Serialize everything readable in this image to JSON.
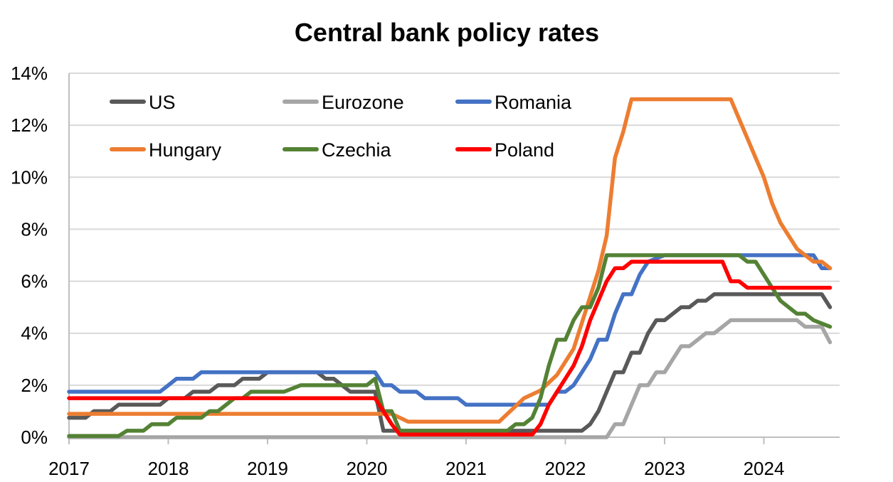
{
  "chart_data": {
    "type": "line",
    "title": "Central bank policy rates",
    "xlabel": "",
    "ylabel": "",
    "x_ticks": [
      "2017",
      "2018",
      "2019",
      "2020",
      "2021",
      "2022",
      "2023",
      "2024"
    ],
    "y_ticks": [
      "0%",
      "2%",
      "4%",
      "6%",
      "8%",
      "10%",
      "12%",
      "14%"
    ],
    "xlim": [
      "2017-01",
      "2024-09"
    ],
    "ylim": [
      0,
      14
    ],
    "grid": true,
    "legend_position": "top-left, inside plot, 3 columns",
    "series": [
      {
        "name": "US",
        "color": "#595959",
        "points": [
          [
            "2017-01",
            0.75
          ],
          [
            "2017-03",
            0.75
          ],
          [
            "2017-04",
            1.0
          ],
          [
            "2017-06",
            1.0
          ],
          [
            "2017-07",
            1.25
          ],
          [
            "2017-12",
            1.25
          ],
          [
            "2018-01",
            1.5
          ],
          [
            "2018-03",
            1.5
          ],
          [
            "2018-04",
            1.75
          ],
          [
            "2018-06",
            1.75
          ],
          [
            "2018-07",
            2.0
          ],
          [
            "2018-09",
            2.0
          ],
          [
            "2018-10",
            2.25
          ],
          [
            "2018-12",
            2.25
          ],
          [
            "2019-01",
            2.5
          ],
          [
            "2019-07",
            2.5
          ],
          [
            "2019-08",
            2.25
          ],
          [
            "2019-09",
            2.25
          ],
          [
            "2019-10",
            2.0
          ],
          [
            "2019-11",
            1.75
          ],
          [
            "2020-02",
            1.75
          ],
          [
            "2020-03",
            0.25
          ],
          [
            "2022-03",
            0.25
          ],
          [
            "2022-04",
            0.5
          ],
          [
            "2022-05",
            1.0
          ],
          [
            "2022-06",
            1.75
          ],
          [
            "2022-07",
            2.5
          ],
          [
            "2022-08",
            2.5
          ],
          [
            "2022-09",
            3.25
          ],
          [
            "2022-10",
            3.25
          ],
          [
            "2022-11",
            4.0
          ],
          [
            "2022-12",
            4.5
          ],
          [
            "2023-01",
            4.5
          ],
          [
            "2023-02",
            4.75
          ],
          [
            "2023-03",
            5.0
          ],
          [
            "2023-04",
            5.0
          ],
          [
            "2023-05",
            5.25
          ],
          [
            "2023-06",
            5.25
          ],
          [
            "2023-07",
            5.5
          ],
          [
            "2024-08",
            5.5
          ],
          [
            "2024-09",
            5.0
          ]
        ]
      },
      {
        "name": "Eurozone",
        "color": "#a6a6a6",
        "points": [
          [
            "2017-01",
            0.0
          ],
          [
            "2022-06",
            0.0
          ],
          [
            "2022-07",
            0.5
          ],
          [
            "2022-08",
            0.5
          ],
          [
            "2022-09",
            1.25
          ],
          [
            "2022-10",
            2.0
          ],
          [
            "2022-11",
            2.0
          ],
          [
            "2022-12",
            2.5
          ],
          [
            "2023-01",
            2.5
          ],
          [
            "2023-02",
            3.0
          ],
          [
            "2023-03",
            3.5
          ],
          [
            "2023-04",
            3.5
          ],
          [
            "2023-05",
            3.75
          ],
          [
            "2023-06",
            4.0
          ],
          [
            "2023-07",
            4.0
          ],
          [
            "2023-08",
            4.25
          ],
          [
            "2023-09",
            4.5
          ],
          [
            "2024-05",
            4.5
          ],
          [
            "2024-06",
            4.25
          ],
          [
            "2024-08",
            4.25
          ],
          [
            "2024-09",
            3.65
          ]
        ]
      },
      {
        "name": "Romania",
        "color": "#4472c4",
        "points": [
          [
            "2017-01",
            1.75
          ],
          [
            "2017-12",
            1.75
          ],
          [
            "2018-01",
            2.0
          ],
          [
            "2018-02",
            2.25
          ],
          [
            "2018-04",
            2.25
          ],
          [
            "2018-05",
            2.5
          ],
          [
            "2020-02",
            2.5
          ],
          [
            "2020-03",
            2.0
          ],
          [
            "2020-04",
            2.0
          ],
          [
            "2020-05",
            1.75
          ],
          [
            "2020-07",
            1.75
          ],
          [
            "2020-08",
            1.5
          ],
          [
            "2020-12",
            1.5
          ],
          [
            "2021-01",
            1.25
          ],
          [
            "2021-11",
            1.25
          ],
          [
            "2021-12",
            1.75
          ],
          [
            "2022-01",
            1.75
          ],
          [
            "2022-02",
            2.0
          ],
          [
            "2022-03",
            2.5
          ],
          [
            "2022-04",
            3.0
          ],
          [
            "2022-05",
            3.75
          ],
          [
            "2022-06",
            3.75
          ],
          [
            "2022-07",
            4.75
          ],
          [
            "2022-08",
            5.5
          ],
          [
            "2022-09",
            5.5
          ],
          [
            "2022-10",
            6.25
          ],
          [
            "2022-11",
            6.75
          ],
          [
            "2023-01",
            7.0
          ],
          [
            "2024-07",
            7.0
          ],
          [
            "2024-08",
            6.5
          ],
          [
            "2024-09",
            6.5
          ]
        ]
      },
      {
        "name": "Hungary",
        "color": "#ed7d31",
        "points": [
          [
            "2017-01",
            0.9
          ],
          [
            "2020-02",
            0.9
          ],
          [
            "2020-03",
            0.9
          ],
          [
            "2020-04",
            0.9
          ],
          [
            "2020-05",
            0.75
          ],
          [
            "2020-06",
            0.6
          ],
          [
            "2021-05",
            0.6
          ],
          [
            "2021-06",
            0.9
          ],
          [
            "2021-07",
            1.2
          ],
          [
            "2021-08",
            1.5
          ],
          [
            "2021-09",
            1.65
          ],
          [
            "2021-10",
            1.8
          ],
          [
            "2021-11",
            2.1
          ],
          [
            "2021-12",
            2.4
          ],
          [
            "2022-01",
            2.9
          ],
          [
            "2022-02",
            3.4
          ],
          [
            "2022-03",
            4.4
          ],
          [
            "2022-04",
            5.4
          ],
          [
            "2022-05",
            6.4
          ],
          [
            "2022-06",
            7.75
          ],
          [
            "2022-07",
            10.75
          ],
          [
            "2022-08",
            11.75
          ],
          [
            "2022-09",
            13.0
          ],
          [
            "2023-08",
            13.0
          ],
          [
            "2023-09",
            13.0
          ],
          [
            "2023-10",
            12.25
          ],
          [
            "2023-11",
            11.5
          ],
          [
            "2023-12",
            10.75
          ],
          [
            "2024-01",
            10.0
          ],
          [
            "2024-02",
            9.0
          ],
          [
            "2024-03",
            8.25
          ],
          [
            "2024-04",
            7.75
          ],
          [
            "2024-05",
            7.25
          ],
          [
            "2024-06",
            7.0
          ],
          [
            "2024-07",
            6.75
          ],
          [
            "2024-08",
            6.75
          ],
          [
            "2024-09",
            6.5
          ]
        ]
      },
      {
        "name": "Czechia",
        "color": "#548235",
        "points": [
          [
            "2017-01",
            0.05
          ],
          [
            "2017-07",
            0.05
          ],
          [
            "2017-08",
            0.25
          ],
          [
            "2017-10",
            0.25
          ],
          [
            "2017-11",
            0.5
          ],
          [
            "2018-01",
            0.5
          ],
          [
            "2018-02",
            0.75
          ],
          [
            "2018-05",
            0.75
          ],
          [
            "2018-06",
            1.0
          ],
          [
            "2018-07",
            1.0
          ],
          [
            "2018-08",
            1.25
          ],
          [
            "2018-09",
            1.5
          ],
          [
            "2018-10",
            1.5
          ],
          [
            "2018-11",
            1.75
          ],
          [
            "2019-03",
            1.75
          ],
          [
            "2019-05",
            2.0
          ],
          [
            "2020-01",
            2.0
          ],
          [
            "2020-02",
            2.25
          ],
          [
            "2020-03",
            1.0
          ],
          [
            "2020-04",
            1.0
          ],
          [
            "2020-05",
            0.25
          ],
          [
            "2021-06",
            0.25
          ],
          [
            "2021-07",
            0.5
          ],
          [
            "2021-08",
            0.5
          ],
          [
            "2021-09",
            0.75
          ],
          [
            "2021-10",
            1.5
          ],
          [
            "2021-11",
            2.75
          ],
          [
            "2021-12",
            3.75
          ],
          [
            "2022-01",
            3.75
          ],
          [
            "2022-02",
            4.5
          ],
          [
            "2022-03",
            5.0
          ],
          [
            "2022-04",
            5.0
          ],
          [
            "2022-05",
            5.75
          ],
          [
            "2022-06",
            7.0
          ],
          [
            "2023-09",
            7.0
          ],
          [
            "2023-10",
            7.0
          ],
          [
            "2023-11",
            6.75
          ],
          [
            "2023-12",
            6.75
          ],
          [
            "2024-01",
            6.25
          ],
          [
            "2024-02",
            5.75
          ],
          [
            "2024-03",
            5.25
          ],
          [
            "2024-05",
            4.75
          ],
          [
            "2024-06",
            4.75
          ],
          [
            "2024-07",
            4.5
          ],
          [
            "2024-09",
            4.25
          ]
        ]
      },
      {
        "name": "Poland",
        "color": "#ff0000",
        "points": [
          [
            "2017-01",
            1.5
          ],
          [
            "2020-02",
            1.5
          ],
          [
            "2020-03",
            1.0
          ],
          [
            "2020-04",
            0.5
          ],
          [
            "2020-05",
            0.1
          ],
          [
            "2021-09",
            0.1
          ],
          [
            "2021-10",
            0.5
          ],
          [
            "2021-11",
            1.25
          ],
          [
            "2021-12",
            1.75
          ],
          [
            "2022-01",
            2.25
          ],
          [
            "2022-02",
            2.75
          ],
          [
            "2022-03",
            3.5
          ],
          [
            "2022-04",
            4.5
          ],
          [
            "2022-05",
            5.25
          ],
          [
            "2022-06",
            6.0
          ],
          [
            "2022-07",
            6.5
          ],
          [
            "2022-08",
            6.5
          ],
          [
            "2022-09",
            6.75
          ],
          [
            "2023-08",
            6.75
          ],
          [
            "2023-09",
            6.0
          ],
          [
            "2023-10",
            6.0
          ],
          [
            "2023-11",
            5.75
          ],
          [
            "2024-09",
            5.75
          ]
        ]
      }
    ]
  }
}
